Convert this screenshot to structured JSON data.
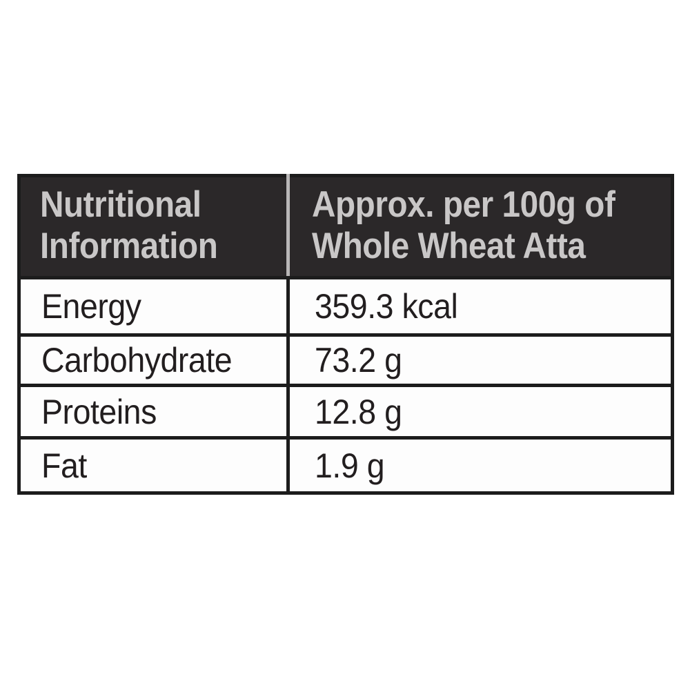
{
  "page": {
    "background_color": "#ffffff",
    "description": "Nutritional information table label"
  },
  "nutrition_table": {
    "header": {
      "column1": {
        "line1": "Nutritional",
        "line2": "Information"
      },
      "column2": {
        "line1": "Approx. per 100g of",
        "line2": "Whole Wheat Atta"
      }
    },
    "rows": [
      {
        "label": "Energy",
        "value": "359.3 kcal"
      },
      {
        "label": "Carbohydrate",
        "value": "73.2 g"
      },
      {
        "label": "Proteins",
        "value": "12.8 g"
      },
      {
        "label": "Fat",
        "value": "1.9 g"
      }
    ],
    "colors": {
      "header_background": "#2b2829",
      "header_text": "#c9c7c7",
      "header_divider": "#b9b7b7",
      "body_text": "#221e1f",
      "border": "#1c1c1c",
      "row_background": "#fdfdfd",
      "page_background": "#ffffff"
    }
  }
}
